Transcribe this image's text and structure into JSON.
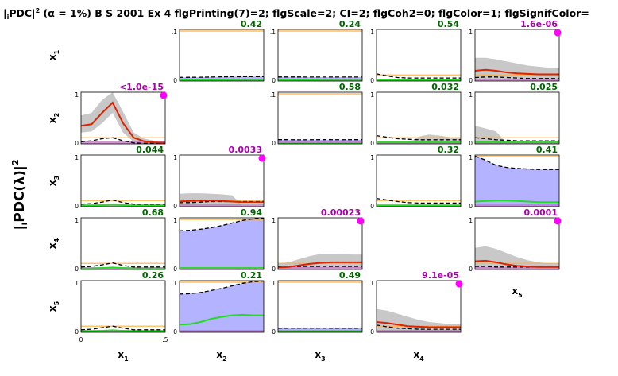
{
  "chart_data": {
    "type": "line",
    "title_prefix": "|",
    "title_sub": "i",
    "title_main": "PDC|",
    "title_sup": "2",
    "title_rest": " (α = 1%) B S 2001 Ex 4 flgPrinting(7)=2; flgScale=2; CI=2; flgCoh2=0; flgColor=1; flgSignifColor=",
    "ylabel": "|iPDC(λ)|²",
    "ylabel_parts": {
      "pre": "|",
      "sub": "i",
      "main": "PDC(λ)|",
      "sup": "2"
    },
    "variables": [
      "x1",
      "x2",
      "x3",
      "x4",
      "x5"
    ],
    "var_main": "x",
    "var_subs": [
      "1",
      "2",
      "3",
      "4",
      "5"
    ],
    "x_ticks": [
      "0",
      ".5"
    ],
    "y_tick_top": ".1",
    "y_ticks_bottom": [
      "0",
      "1"
    ],
    "colors": {
      "significant_fill": "#b3b3ff",
      "ci_fill": "#c8c8c8",
      "pdc_sig": "#dd2200",
      "pdc_nonsig": "#22dd22",
      "threshold": "#000000",
      "upper_line": "#ffb03a",
      "lower_band": "#c878c8",
      "pval_sig": "#aa00aa",
      "pval_nonsig": "#006600",
      "marker": "#ff00ff"
    },
    "panels": [
      {
        "row": 1,
        "col": 2,
        "pval": "0.42",
        "sig": false,
        "fill": true,
        "ytop": ".1",
        "pdc": [
          0.015,
          0.016,
          0.017,
          0.018,
          0.016,
          0.014,
          0.012,
          0.011,
          0.01
        ],
        "threshold": [
          0.073,
          0.074,
          0.076,
          0.079,
          0.083,
          0.085,
          0.086,
          0.087,
          0.087
        ]
      },
      {
        "row": 1,
        "col": 3,
        "pval": "0.24",
        "sig": false,
        "fill": true,
        "ytop": ".1",
        "pdc": [
          0.03,
          0.03,
          0.028,
          0.022,
          0.014,
          0.01,
          0.009,
          0.009,
          0.009
        ],
        "threshold": [
          0.08,
          0.08,
          0.08,
          0.079,
          0.078,
          0.078,
          0.078,
          0.078,
          0.078
        ]
      },
      {
        "row": 1,
        "col": 4,
        "pval": "0.54",
        "sig": false,
        "fill": false,
        "pdc": [
          0.02,
          0.02,
          0.02,
          0.02,
          0.02,
          0.02,
          0.02,
          0.02,
          0.02
        ],
        "threshold": [
          0.14,
          0.1,
          0.07,
          0.06,
          0.06,
          0.06,
          0.06,
          0.06,
          0.06
        ]
      },
      {
        "row": 1,
        "col": 5,
        "pval": "1.6e-06",
        "sig": true,
        "fill": false,
        "pdc": [
          0.2,
          0.22,
          0.2,
          0.17,
          0.15,
          0.14,
          0.13,
          0.13,
          0.13
        ],
        "threshold": [
          0.07,
          0.08,
          0.08,
          0.07,
          0.06,
          0.05,
          0.05,
          0.05,
          0.05
        ],
        "ci_hi": [
          0.45,
          0.45,
          0.42,
          0.38,
          0.34,
          0.3,
          0.28,
          0.26,
          0.26
        ],
        "ci_lo": [
          0.02,
          0.02,
          0.02,
          0.02,
          0.02,
          0.02,
          0.02,
          0.02,
          0.02
        ]
      },
      {
        "row": 2,
        "col": 1,
        "pval": "<1.0e-15",
        "sig": true,
        "fill": false,
        "pdc": [
          0.35,
          0.38,
          0.6,
          0.8,
          0.4,
          0.12,
          0.05,
          0.03,
          0.02
        ],
        "threshold": [
          0.04,
          0.06,
          0.1,
          0.12,
          0.06,
          0.02,
          0.01,
          0.01,
          0.01
        ],
        "ci_hi": [
          0.55,
          0.6,
          0.85,
          1.0,
          0.62,
          0.22,
          0.1,
          0.06,
          0.05
        ],
        "ci_lo": [
          0.22,
          0.24,
          0.4,
          0.6,
          0.22,
          0.04,
          0.01,
          0.01,
          0.01
        ]
      },
      {
        "row": 2,
        "col": 3,
        "pval": "0.58",
        "sig": false,
        "fill": true,
        "ytop": ".1",
        "pdc": [
          0.01,
          0.01,
          0.01,
          0.01,
          0.01,
          0.01,
          0.01,
          0.011,
          0.011
        ],
        "threshold": [
          0.082,
          0.082,
          0.079,
          0.08,
          0.082,
          0.081,
          0.08,
          0.081,
          0.081
        ]
      },
      {
        "row": 2,
        "col": 4,
        "pval": "0.032",
        "sig": false,
        "fill": false,
        "pdc": [
          0.03,
          0.03,
          0.03,
          0.03,
          0.03,
          0.03,
          0.03,
          0.03,
          0.03
        ],
        "threshold": [
          0.16,
          0.13,
          0.1,
          0.09,
          0.08,
          0.08,
          0.08,
          0.08,
          0.08
        ],
        "ci_hi": [
          0.02,
          0.02,
          0.02,
          0.02,
          0.14,
          0.18,
          0.16,
          0.13,
          0.13
        ],
        "ci_lo": [
          0.01,
          0.01,
          0.01,
          0.01,
          0.01,
          0.01,
          0.01,
          0.01,
          0.01
        ]
      },
      {
        "row": 2,
        "col": 5,
        "pval": "0.025",
        "sig": false,
        "fill": false,
        "pdc": [
          0.03,
          0.03,
          0.03,
          0.03,
          0.03,
          0.03,
          0.03,
          0.03,
          0.03
        ],
        "threshold": [
          0.12,
          0.1,
          0.08,
          0.07,
          0.06,
          0.06,
          0.06,
          0.06,
          0.06
        ],
        "ci_hi": [
          0.35,
          0.3,
          0.24,
          0.02,
          0.02,
          0.02,
          0.02,
          0.02,
          0.02
        ],
        "ci_lo": [
          0.01,
          0.01,
          0.01,
          0.01,
          0.01,
          0.01,
          0.01,
          0.01,
          0.01
        ]
      },
      {
        "row": 3,
        "col": 1,
        "pval": "0.044",
        "sig": false,
        "fill": false,
        "pdc": [
          0.02,
          0.02,
          0.03,
          0.04,
          0.03,
          0.02,
          0.02,
          0.02,
          0.02
        ],
        "threshold": [
          0.05,
          0.06,
          0.09,
          0.13,
          0.08,
          0.05,
          0.05,
          0.05,
          0.05
        ]
      },
      {
        "row": 3,
        "col": 2,
        "pval": "0.0033",
        "sig": true,
        "fill": false,
        "pdc": [
          0.1,
          0.11,
          0.12,
          0.12,
          0.11,
          0.1,
          0.09,
          0.09,
          0.09
        ],
        "threshold": [
          0.08,
          0.08,
          0.09,
          0.1,
          0.1,
          0.1,
          0.1,
          0.1,
          0.1
        ],
        "ci_hi": [
          0.25,
          0.26,
          0.26,
          0.25,
          0.24,
          0.22,
          0.02,
          0.02,
          0.02
        ],
        "ci_lo": [
          0.02,
          0.02,
          0.02,
          0.02,
          0.02,
          0.02,
          0.02,
          0.02,
          0.02
        ]
      },
      {
        "row": 3,
        "col": 4,
        "pval": "0.32",
        "sig": false,
        "fill": false,
        "pdc": [
          0.02,
          0.02,
          0.02,
          0.02,
          0.02,
          0.02,
          0.02,
          0.02,
          0.02
        ],
        "threshold": [
          0.16,
          0.13,
          0.1,
          0.08,
          0.07,
          0.07,
          0.07,
          0.07,
          0.07
        ]
      },
      {
        "row": 3,
        "col": 5,
        "pval": "0.41",
        "sig": false,
        "fill": true,
        "ytop": "1",
        "pdc": [
          0.1,
          0.11,
          0.12,
          0.12,
          0.11,
          0.1,
          0.09,
          0.09,
          0.09
        ],
        "threshold": [
          0.98,
          0.9,
          0.8,
          0.76,
          0.74,
          0.73,
          0.72,
          0.72,
          0.72
        ]
      },
      {
        "row": 4,
        "col": 1,
        "pval": "0.68",
        "sig": false,
        "fill": false,
        "pdc": [
          0.02,
          0.02,
          0.03,
          0.04,
          0.03,
          0.02,
          0.02,
          0.02,
          0.02
        ],
        "threshold": [
          0.05,
          0.06,
          0.09,
          0.13,
          0.08,
          0.05,
          0.05,
          0.05,
          0.05
        ]
      },
      {
        "row": 4,
        "col": 2,
        "pval": "0.94",
        "sig": false,
        "fill": true,
        "ytop": "1",
        "pdc": [
          0.03,
          0.03,
          0.03,
          0.03,
          0.03,
          0.03,
          0.03,
          0.03,
          0.03
        ],
        "threshold": [
          0.75,
          0.76,
          0.78,
          0.81,
          0.85,
          0.9,
          0.95,
          0.98,
          0.99
        ]
      },
      {
        "row": 4,
        "col": 3,
        "pval": "0.00023",
        "sig": true,
        "fill": false,
        "pdc": [
          0.04,
          0.05,
          0.08,
          0.11,
          0.13,
          0.14,
          0.14,
          0.14,
          0.14
        ],
        "threshold": [
          0.06,
          0.06,
          0.06,
          0.06,
          0.06,
          0.06,
          0.06,
          0.06,
          0.06
        ],
        "ci_hi": [
          0.12,
          0.14,
          0.2,
          0.26,
          0.3,
          0.3,
          0.3,
          0.29,
          0.29
        ],
        "ci_lo": [
          0.01,
          0.01,
          0.01,
          0.02,
          0.03,
          0.03,
          0.03,
          0.03,
          0.03
        ]
      },
      {
        "row": 4,
        "col": 5,
        "pval": "0.0001",
        "sig": true,
        "fill": false,
        "pdc": [
          0.16,
          0.17,
          0.14,
          0.1,
          0.07,
          0.06,
          0.05,
          0.05,
          0.05
        ],
        "threshold": [
          0.06,
          0.06,
          0.05,
          0.05,
          0.05,
          0.05,
          0.05,
          0.05,
          0.05
        ],
        "ci_hi": [
          0.42,
          0.45,
          0.4,
          0.32,
          0.24,
          0.18,
          0.14,
          0.12,
          0.12
        ],
        "ci_lo": [
          0.02,
          0.02,
          0.02,
          0.02,
          0.02,
          0.02,
          0.02,
          0.02,
          0.02
        ]
      },
      {
        "row": 5,
        "col": 1,
        "pval": "0.26",
        "sig": false,
        "fill": false,
        "pdc": [
          0.02,
          0.02,
          0.03,
          0.04,
          0.03,
          0.02,
          0.02,
          0.02,
          0.02
        ],
        "threshold": [
          0.05,
          0.06,
          0.09,
          0.12,
          0.08,
          0.05,
          0.05,
          0.05,
          0.05
        ]
      },
      {
        "row": 5,
        "col": 2,
        "pval": "0.21",
        "sig": false,
        "fill": true,
        "ytop": "1",
        "pdc": [
          0.15,
          0.16,
          0.2,
          0.26,
          0.3,
          0.33,
          0.34,
          0.33,
          0.33
        ],
        "threshold": [
          0.74,
          0.75,
          0.77,
          0.81,
          0.85,
          0.9,
          0.95,
          0.98,
          0.99
        ]
      },
      {
        "row": 5,
        "col": 3,
        "pval": "0.49",
        "sig": false,
        "fill": true,
        "ytop": ".1",
        "pdc": [
          0.01,
          0.01,
          0.011,
          0.012,
          0.012,
          0.012,
          0.012,
          0.012,
          0.012
        ],
        "threshold": [
          0.08,
          0.08,
          0.081,
          0.082,
          0.081,
          0.08,
          0.08,
          0.08,
          0.08
        ]
      },
      {
        "row": 5,
        "col": 4,
        "pval": "9.1e-05",
        "sig": true,
        "fill": false,
        "pdc": [
          0.2,
          0.18,
          0.15,
          0.12,
          0.11,
          0.1,
          0.1,
          0.1,
          0.1
        ],
        "threshold": [
          0.14,
          0.11,
          0.08,
          0.07,
          0.06,
          0.06,
          0.06,
          0.06,
          0.06
        ],
        "ci_hi": [
          0.45,
          0.42,
          0.36,
          0.3,
          0.24,
          0.2,
          0.18,
          0.16,
          0.16
        ],
        "ci_lo": [
          0.02,
          0.02,
          0.02,
          0.02,
          0.02,
          0.02,
          0.02,
          0.02,
          0.02
        ]
      }
    ],
    "xlim": [
      0,
      0.5
    ],
    "ylim": [
      0,
      1
    ]
  }
}
